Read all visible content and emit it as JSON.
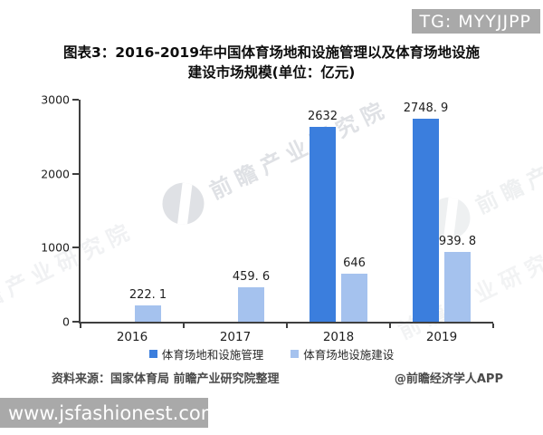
{
  "badge": {
    "text": "TG: MYYJJPP"
  },
  "title": {
    "line1": "图表3：2016-2019年中国体育场地和设施管理以及体育场地设施",
    "line2": "建设市场规模(单位：亿元)"
  },
  "chart_data": {
    "type": "bar",
    "title": "图表3：2016-2019年中国体育场地和设施管理以及体育场地设施建设市场规模(单位：亿元)",
    "categories": [
      "2016",
      "2017",
      "2018",
      "2019"
    ],
    "series": [
      {
        "name": "体育场地和设施管理",
        "color": "#3b7edd",
        "values": [
          null,
          null,
          2632,
          2748.9
        ],
        "labels": [
          "",
          "",
          "2632",
          "2748. 9"
        ]
      },
      {
        "name": "体育场地设施建设",
        "color": "#a5c2ee",
        "values": [
          222.1,
          459.6,
          646,
          939.8
        ],
        "labels": [
          "222. 1",
          "459. 6",
          "646",
          "939. 8"
        ]
      }
    ],
    "ylim": [
      0,
      3000
    ],
    "yticks": [
      0,
      1000,
      2000,
      3000
    ],
    "xlabel": "",
    "ylabel": "",
    "grid": false,
    "legend_position": "bottom"
  },
  "watermark": {
    "text": "前瞻产业研究院"
  },
  "footer": {
    "source": "资料来源：国家体育局 前瞻产业研究院整理",
    "credit": "@前瞻经济学人APP"
  },
  "url_bar": {
    "text": "www.jsfashionest.com"
  },
  "colors": {
    "stamp_background": "#a9a9a9",
    "stamp_text": "#ffffff",
    "axis": "#3f3f3f"
  }
}
